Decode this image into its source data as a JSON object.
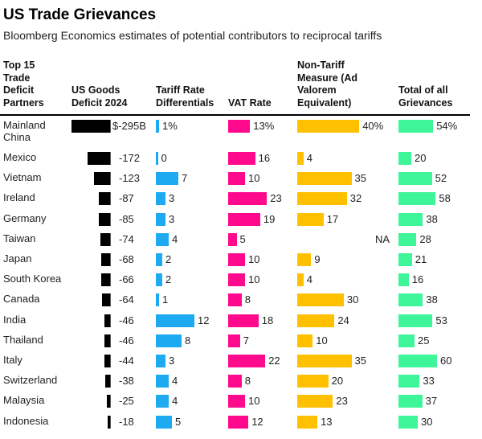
{
  "title": "US Trade Grievances",
  "subtitle": "Bloomberg Economics estimates of potential contributors to reciprocal tariffs",
  "colors": {
    "deficit": "#000000",
    "tariff": "#1eaaf1",
    "vat": "#ff0a8c",
    "ntm": "#ffc000",
    "total": "#3ef59a"
  },
  "headers": {
    "partner": "Top 15 Trade Deficit Partners",
    "deficit": "US Goods Deficit 2024",
    "tariff": "Tariff Rate Differentials",
    "vat": "VAT Rate",
    "ntm": "Non-Tariff Measure (Ad Valorem Equivalent)",
    "total": "Total of all Grievances"
  },
  "chart_data": {
    "type": "table",
    "columns": [
      "US Goods Deficit 2024 ($B)",
      "Tariff Rate Differentials (%)",
      "VAT Rate (%)",
      "Non-Tariff Measure (%)",
      "Total of all Grievances (%)"
    ],
    "rows": [
      {
        "partner": "Mainland China",
        "deficit": -295,
        "deficit_label": "$-295B",
        "tariff": 1,
        "tariff_label": "1%",
        "vat": 13,
        "vat_label": "13%",
        "ntm": 40,
        "ntm_label": "40%",
        "total": 54,
        "total_label": "54%"
      },
      {
        "partner": "Mexico",
        "deficit": -172,
        "deficit_label": "-172",
        "tariff": 0,
        "tariff_label": "0",
        "vat": 16,
        "vat_label": "16",
        "ntm": 4,
        "ntm_label": "4",
        "total": 20,
        "total_label": "20"
      },
      {
        "partner": "Vietnam",
        "deficit": -123,
        "deficit_label": "-123",
        "tariff": 7,
        "tariff_label": "7",
        "vat": 10,
        "vat_label": "10",
        "ntm": 35,
        "ntm_label": "35",
        "total": 52,
        "total_label": "52"
      },
      {
        "partner": "Ireland",
        "deficit": -87,
        "deficit_label": "-87",
        "tariff": 3,
        "tariff_label": "3",
        "vat": 23,
        "vat_label": "23",
        "ntm": 32,
        "ntm_label": "32",
        "total": 58,
        "total_label": "58"
      },
      {
        "partner": "Germany",
        "deficit": -85,
        "deficit_label": "-85",
        "tariff": 3,
        "tariff_label": "3",
        "vat": 19,
        "vat_label": "19",
        "ntm": 17,
        "ntm_label": "17",
        "total": 38,
        "total_label": "38"
      },
      {
        "partner": "Taiwan",
        "deficit": -74,
        "deficit_label": "-74",
        "tariff": 4,
        "tariff_label": "4",
        "vat": 5,
        "vat_label": "5",
        "ntm": null,
        "ntm_label": "NA",
        "total": 28,
        "total_label": "28"
      },
      {
        "partner": "Japan",
        "deficit": -68,
        "deficit_label": "-68",
        "tariff": 2,
        "tariff_label": "2",
        "vat": 10,
        "vat_label": "10",
        "ntm": 9,
        "ntm_label": "9",
        "total": 21,
        "total_label": "21"
      },
      {
        "partner": "South Korea",
        "deficit": -66,
        "deficit_label": "-66",
        "tariff": 2,
        "tariff_label": "2",
        "vat": 10,
        "vat_label": "10",
        "ntm": 4,
        "ntm_label": "4",
        "total": 16,
        "total_label": "16"
      },
      {
        "partner": "Canada",
        "deficit": -64,
        "deficit_label": "-64",
        "tariff": 1,
        "tariff_label": "1",
        "vat": 8,
        "vat_label": "8",
        "ntm": 30,
        "ntm_label": "30",
        "total": 38,
        "total_label": "38"
      },
      {
        "partner": "India",
        "deficit": -46,
        "deficit_label": "-46",
        "tariff": 12,
        "tariff_label": "12",
        "vat": 18,
        "vat_label": "18",
        "ntm": 24,
        "ntm_label": "24",
        "total": 53,
        "total_label": "53"
      },
      {
        "partner": "Thailand",
        "deficit": -46,
        "deficit_label": "-46",
        "tariff": 8,
        "tariff_label": "8",
        "vat": 7,
        "vat_label": "7",
        "ntm": 10,
        "ntm_label": "10",
        "total": 25,
        "total_label": "25"
      },
      {
        "partner": "Italy",
        "deficit": -44,
        "deficit_label": "-44",
        "tariff": 3,
        "tariff_label": "3",
        "vat": 22,
        "vat_label": "22",
        "ntm": 35,
        "ntm_label": "35",
        "total": 60,
        "total_label": "60"
      },
      {
        "partner": "Switzerland",
        "deficit": -38,
        "deficit_label": "-38",
        "tariff": 4,
        "tariff_label": "4",
        "vat": 8,
        "vat_label": "8",
        "ntm": 20,
        "ntm_label": "20",
        "total": 33,
        "total_label": "33"
      },
      {
        "partner": "Malaysia",
        "deficit": -25,
        "deficit_label": "-25",
        "tariff": 4,
        "tariff_label": "4",
        "vat": 10,
        "vat_label": "10",
        "ntm": 23,
        "ntm_label": "23",
        "total": 37,
        "total_label": "37"
      },
      {
        "partner": "Indonesia",
        "deficit": -18,
        "deficit_label": "-18",
        "tariff": 5,
        "tariff_label": "5",
        "vat": 12,
        "vat_label": "12",
        "ntm": 13,
        "ntm_label": "13",
        "total": 30,
        "total_label": "30"
      }
    ]
  }
}
